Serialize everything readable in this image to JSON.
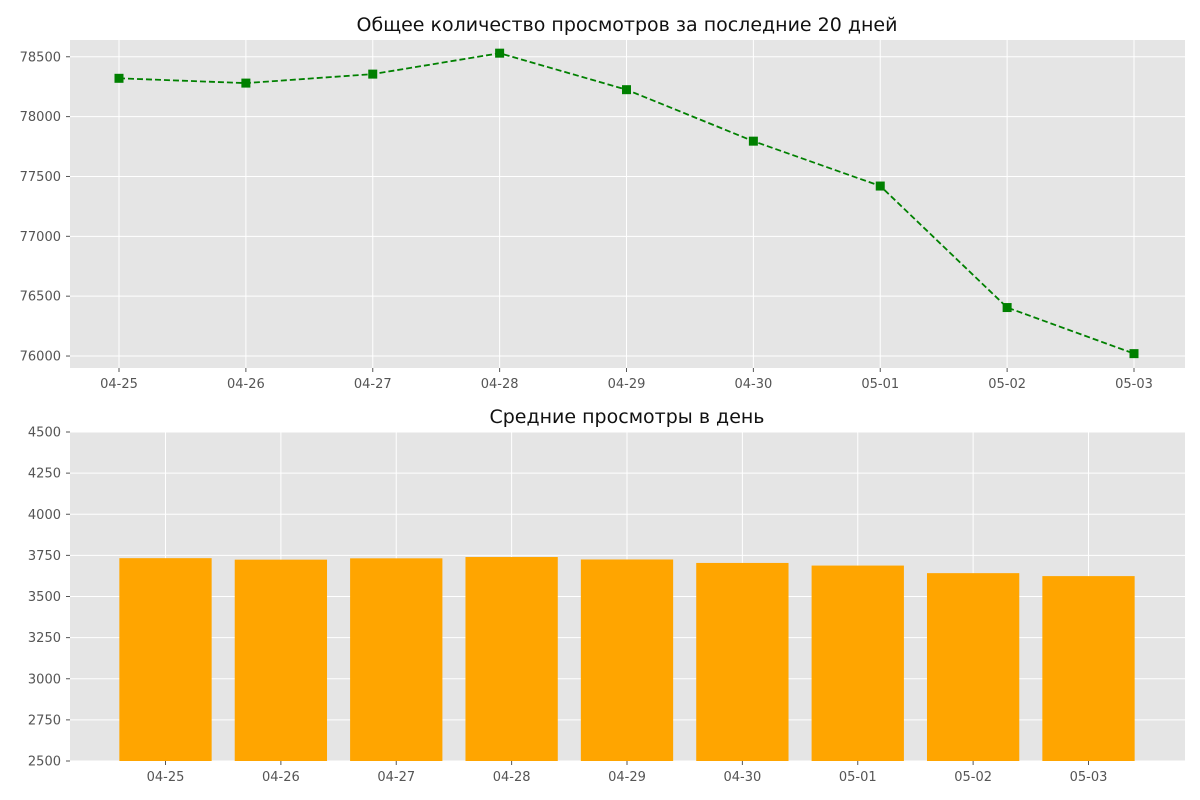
{
  "chart_data": [
    {
      "type": "line",
      "title": "Общее количество просмотров за последние 20 дней",
      "categories": [
        "04-25",
        "04-26",
        "04-27",
        "04-28",
        "04-29",
        "04-30",
        "05-01",
        "05-02",
        "05-03"
      ],
      "series": [
        {
          "values": [
            78320,
            78280,
            78355,
            78530,
            78225,
            77795,
            77420,
            76405,
            76020
          ],
          "color": "#008000",
          "line_style": "dashed",
          "marker": "square"
        }
      ],
      "yticks": [
        76000,
        76500,
        77000,
        77500,
        78000,
        78500
      ],
      "ylim": [
        75900,
        78640
      ],
      "grid": true
    },
    {
      "type": "bar",
      "title": "Средние просмотры в день",
      "categories": [
        "04-25",
        "04-26",
        "04-27",
        "04-28",
        "04-29",
        "04-30",
        "05-01",
        "05-02",
        "05-03"
      ],
      "values": [
        3733,
        3724,
        3732,
        3740,
        3725,
        3704,
        3688,
        3642,
        3624
      ],
      "color": "#FFA500",
      "yticks": [
        2500,
        2750,
        3000,
        3250,
        3500,
        3750,
        4000,
        4250,
        4500
      ],
      "ylim": [
        2500,
        4500
      ],
      "grid": true
    }
  ],
  "style": {
    "plot_background": "#E5E5E5",
    "grid_color": "#FFFFFF"
  }
}
